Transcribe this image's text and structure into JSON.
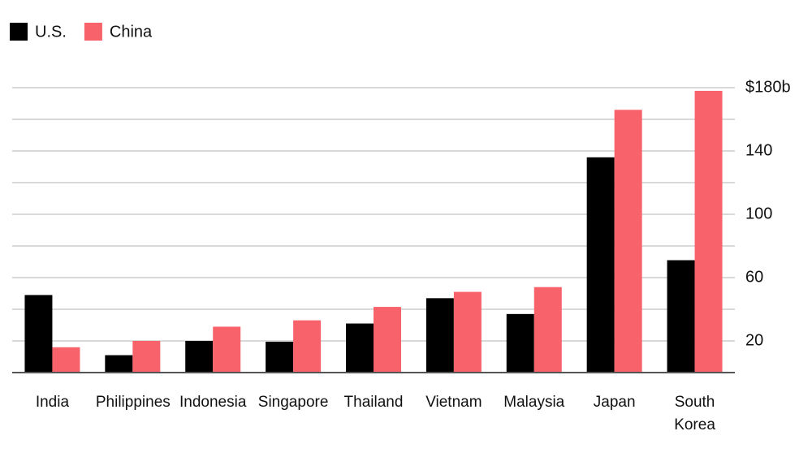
{
  "chart_data": {
    "type": "bar",
    "categories": [
      "India",
      "Philippines",
      "Indonesia",
      "Singapore",
      "Thailand",
      "Vietnam",
      "Malaysia",
      "Japan",
      "South Korea"
    ],
    "series": [
      {
        "name": "U.S.",
        "color": "#000000",
        "values": [
          49,
          11,
          20,
          19.5,
          31,
          47,
          37,
          136,
          71
        ]
      },
      {
        "name": "China",
        "color": "#f8636b",
        "values": [
          16,
          20,
          29,
          33,
          41.5,
          51,
          54,
          166,
          178
        ]
      }
    ],
    "ylim": [
      0,
      180
    ],
    "yticks": [
      20,
      60,
      100,
      140,
      {
        "value": 180,
        "label": "$180b"
      }
    ],
    "minor_yticks": [
      40,
      80,
      120,
      160
    ],
    "grid": true,
    "legend": "top-left"
  }
}
